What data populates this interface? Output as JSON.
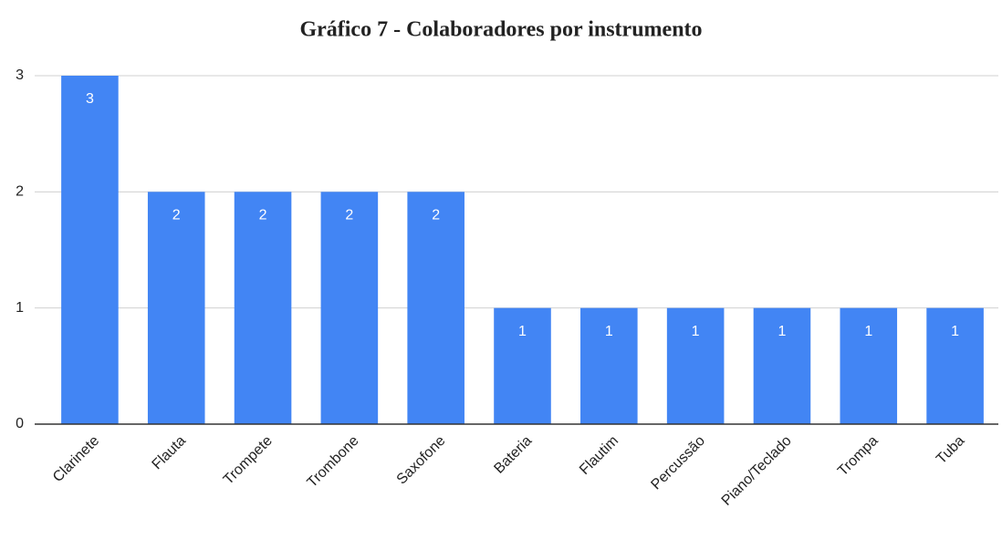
{
  "chart_data": {
    "type": "bar",
    "title": "Gráfico 7 - Colaboradores por instrumento",
    "categories": [
      "Clarinete",
      "Flauta",
      "Trompete",
      "Trombone",
      "Saxofone",
      "Bateria",
      "Flautim",
      "Percussão",
      "Piano/Teclado",
      "Trompa",
      "Tuba"
    ],
    "values": [
      3,
      2,
      2,
      2,
      2,
      1,
      1,
      1,
      1,
      1,
      1
    ],
    "color": "#4285f4",
    "ylim": [
      0,
      3
    ],
    "yticks": [
      0,
      1,
      2,
      3
    ],
    "grid": true,
    "data_labels": true
  }
}
